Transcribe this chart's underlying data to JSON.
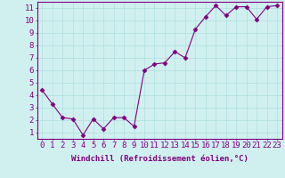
{
  "x": [
    0,
    1,
    2,
    3,
    4,
    5,
    6,
    7,
    8,
    9,
    10,
    11,
    12,
    13,
    14,
    15,
    16,
    17,
    18,
    19,
    20,
    21,
    22,
    23
  ],
  "y": [
    4.4,
    3.3,
    2.2,
    2.1,
    0.8,
    2.1,
    1.3,
    2.2,
    2.2,
    1.5,
    6.0,
    6.5,
    6.6,
    7.5,
    7.0,
    9.3,
    10.3,
    11.2,
    10.4,
    11.1,
    11.1,
    10.1,
    11.1,
    11.2
  ],
  "line_color": "#800080",
  "marker": "D",
  "marker_size": 2.5,
  "xlabel": "Windchill (Refroidissement éolien,°C)",
  "xlabel_color": "#800080",
  "bg_color": "#d0f0f0",
  "grid_color": "#b0dede",
  "tick_color": "#800080",
  "xlim": [
    -0.5,
    23.5
  ],
  "ylim": [
    0.5,
    11.5
  ],
  "yticks": [
    1,
    2,
    3,
    4,
    5,
    6,
    7,
    8,
    9,
    10,
    11
  ],
  "xticks": [
    0,
    1,
    2,
    3,
    4,
    5,
    6,
    7,
    8,
    9,
    10,
    11,
    12,
    13,
    14,
    15,
    16,
    17,
    18,
    19,
    20,
    21,
    22,
    23
  ],
  "spine_color": "#800080",
  "fontsize_xlabel": 6.5,
  "fontsize_tick": 6.5
}
